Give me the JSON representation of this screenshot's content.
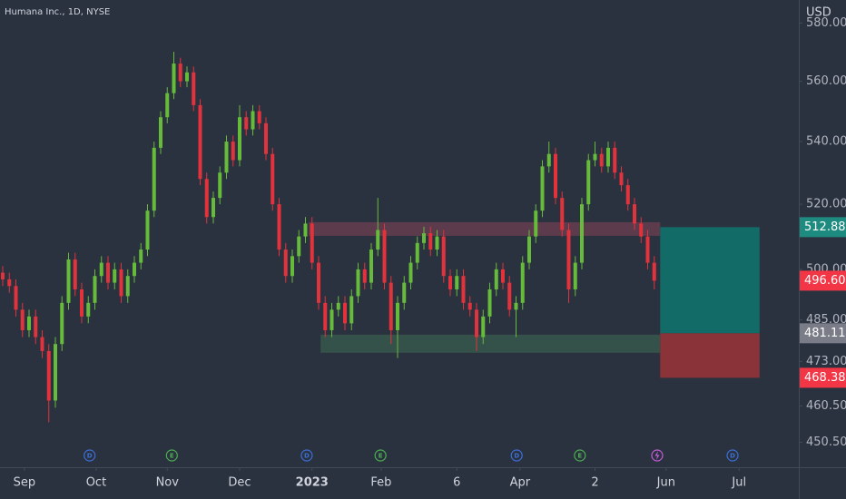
{
  "chart_data": {
    "type": "candlestick",
    "title": "Humana Inc., 1D, NYSE",
    "currency": "USD",
    "log_scale": true,
    "ylim": [
      443.8,
      588.1
    ],
    "yticks": [
      {
        "value": 450.5,
        "label": "450.50"
      },
      {
        "value": 460.5,
        "label": "460.50"
      },
      {
        "value": 473,
        "label": "473.00"
      },
      {
        "value": 485,
        "label": "485.00"
      },
      {
        "value": 500,
        "label": "500.00"
      },
      {
        "value": 520,
        "label": "520.00"
      },
      {
        "value": 540,
        "label": "540.00"
      },
      {
        "value": 560,
        "label": "560.00"
      },
      {
        "value": 580,
        "label": "580.00"
      }
    ],
    "xticks": [
      {
        "value": 3.3,
        "label": "Sep"
      },
      {
        "value": 14.2,
        "label": "Oct"
      },
      {
        "value": 25,
        "label": "Nov"
      },
      {
        "value": 36,
        "label": "Dec"
      },
      {
        "value": 47,
        "label": "2023",
        "bold": true
      },
      {
        "value": 57.5,
        "label": "Feb"
      },
      {
        "value": 69,
        "label": "6"
      },
      {
        "value": 78.6,
        "label": "Apr"
      },
      {
        "value": 90,
        "label": "2"
      },
      {
        "value": 100.8,
        "label": "Jun"
      },
      {
        "value": 111.9,
        "label": "Jul"
      }
    ],
    "up_color": "#66bb3a",
    "down_color": "#e2323c",
    "open": [
      499,
      497,
      495,
      488,
      482,
      486,
      480,
      476,
      462,
      478,
      490,
      503,
      494,
      486,
      490,
      498,
      502,
      496,
      500,
      492,
      498,
      502,
      506,
      518,
      538,
      548,
      556,
      566,
      560,
      563,
      552,
      528,
      516,
      522,
      530,
      540,
      534,
      548,
      544,
      550,
      546,
      536,
      520,
      506,
      498,
      504,
      510,
      514,
      502,
      490,
      482,
      488,
      490,
      484,
      492,
      500,
      496,
      506,
      512,
      496,
      482,
      490,
      496,
      502,
      508,
      511,
      506,
      510,
      498,
      494,
      498,
      490,
      488,
      480,
      486,
      494,
      500,
      496,
      488,
      490,
      502,
      510,
      518,
      532,
      536,
      522,
      512,
      494,
      502,
      520,
      534,
      536,
      532,
      538,
      530,
      526,
      520,
      514,
      510,
      502
    ],
    "high": [
      501,
      499,
      497,
      490,
      488,
      488,
      482,
      478,
      480,
      492,
      505,
      505,
      496,
      492,
      500,
      504,
      504,
      502,
      502,
      500,
      504,
      508,
      520,
      540,
      550,
      558,
      570,
      568,
      565,
      565,
      554,
      530,
      524,
      532,
      542,
      542,
      552,
      550,
      552,
      552,
      548,
      538,
      522,
      508,
      506,
      512,
      516,
      516,
      504,
      492,
      490,
      492,
      492,
      494,
      502,
      502,
      508,
      522,
      514,
      498,
      492,
      498,
      504,
      510,
      513,
      513,
      512,
      512,
      500,
      500,
      500,
      492,
      490,
      488,
      496,
      502,
      502,
      498,
      492,
      504,
      512,
      520,
      534,
      540,
      538,
      524,
      514,
      504,
      522,
      536,
      540,
      538,
      540,
      540,
      532,
      528,
      522,
      516,
      512,
      504
    ],
    "low": [
      495,
      493,
      486,
      480,
      480,
      478,
      474,
      456,
      460,
      476,
      488,
      492,
      484,
      484,
      488,
      496,
      494,
      494,
      490,
      490,
      496,
      500,
      504,
      516,
      536,
      546,
      554,
      558,
      558,
      550,
      526,
      514,
      514,
      520,
      528,
      532,
      532,
      542,
      542,
      544,
      534,
      518,
      504,
      496,
      496,
      502,
      508,
      500,
      488,
      480,
      480,
      486,
      482,
      482,
      490,
      494,
      494,
      504,
      494,
      478,
      474,
      488,
      494,
      500,
      506,
      504,
      504,
      496,
      492,
      492,
      488,
      486,
      476,
      478,
      484,
      492,
      494,
      486,
      480,
      488,
      500,
      508,
      516,
      530,
      520,
      510,
      490,
      492,
      500,
      518,
      532,
      530,
      530,
      528,
      524,
      518,
      512,
      508,
      500,
      494
    ],
    "close": [
      497,
      495,
      488,
      482,
      486,
      480,
      476,
      462,
      478,
      490,
      503,
      494,
      486,
      490,
      498,
      502,
      496,
      500,
      492,
      498,
      502,
      506,
      518,
      538,
      548,
      556,
      566,
      560,
      563,
      552,
      528,
      516,
      522,
      530,
      540,
      534,
      548,
      544,
      550,
      546,
      536,
      520,
      506,
      498,
      504,
      510,
      514,
      502,
      490,
      482,
      488,
      490,
      484,
      492,
      500,
      496,
      506,
      512,
      496,
      482,
      490,
      496,
      502,
      508,
      511,
      506,
      510,
      498,
      494,
      498,
      490,
      488,
      480,
      486,
      494,
      500,
      496,
      488,
      490,
      502,
      510,
      518,
      532,
      536,
      522,
      512,
      494,
      502,
      520,
      534,
      536,
      532,
      538,
      530,
      526,
      520,
      514,
      510,
      502,
      496.6
    ],
    "zones": [
      {
        "ylim": [
          510.2,
          514.4
        ],
        "xlim": [
          46.5,
          99.9
        ],
        "color": "rgba(150,70,90,0.45)"
      },
      {
        "ylim": [
          475.5,
          480.7
        ],
        "xlim": [
          48.3,
          99.9
        ],
        "color": "rgba(60,110,80,0.55)"
      }
    ],
    "position": {
      "xlim": [
        99.9,
        115
      ],
      "entry": 481.11,
      "target": 512.88,
      "stop": 468.38,
      "target_color": "#136b68",
      "stop_color": "#8a3338"
    },
    "price_labels": [
      {
        "value": 512.88,
        "label": "512.88",
        "color": "#1e8b80"
      },
      {
        "value": 496.6,
        "label": "496.60",
        "color": "#f23645"
      },
      {
        "value": 481.11,
        "label": "481.11",
        "color": "#7a7d88"
      },
      {
        "value": 468.38,
        "label": "468.38",
        "color": "#f23645"
      }
    ],
    "events": [
      {
        "x": 13.2,
        "label": "D"
      },
      {
        "x": 25.7,
        "label": "E"
      },
      {
        "x": 46.2,
        "label": "D"
      },
      {
        "x": 57.4,
        "label": "E"
      },
      {
        "x": 78.1,
        "label": "D"
      },
      {
        "x": 87.7,
        "label": "E"
      },
      {
        "x": 110.9,
        "label": "D"
      }
    ]
  }
}
